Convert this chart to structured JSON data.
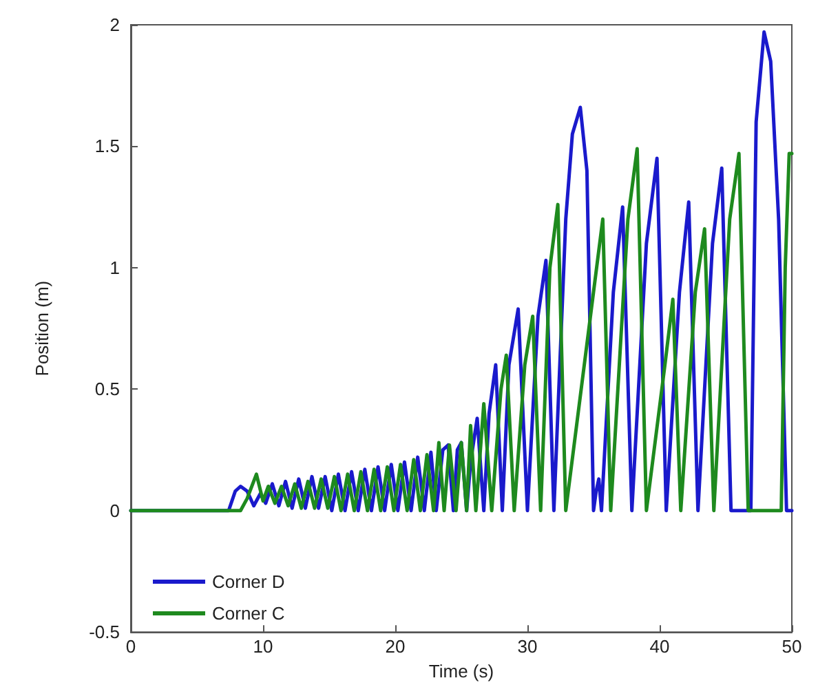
{
  "chart_data": {
    "type": "line",
    "xlabel": "Time (s)",
    "ylabel": "Position (m)",
    "xlim": [
      0,
      50
    ],
    "xticks": [
      0,
      10,
      20,
      30,
      40,
      50
    ],
    "ylim": [
      -0.5,
      2
    ],
    "yticks": [
      -0.5,
      0,
      0.5,
      1,
      1.5,
      2
    ],
    "grid": false,
    "legend": "bottom left",
    "marker": "none",
    "line_style": "solid",
    "series": [
      {
        "name": "Corner D",
        "color": "#1a1acc",
        "x": [
          0,
          7.4,
          7.9,
          8.3,
          8.8,
          9.3,
          9.8,
          10.2,
          10.7,
          11.2,
          11.7,
          12.2,
          12.7,
          13.2,
          13.7,
          14.2,
          14.7,
          15.2,
          15.7,
          16.2,
          16.7,
          17.2,
          17.7,
          18.2,
          18.7,
          19.2,
          19.7,
          20.2,
          20.7,
          21.2,
          21.7,
          22.2,
          22.7,
          23.1,
          23.6,
          24.0,
          24.4,
          24.7,
          25.0,
          25.4,
          25.7,
          26.2,
          26.7,
          27.1,
          27.6,
          28.1,
          28.6,
          29.3,
          30.0,
          30.8,
          31.4,
          32.0,
          32.9,
          33.4,
          34.0,
          34.5,
          35.0,
          35.2,
          35.4,
          35.6,
          36.5,
          37.2,
          37.9,
          39.0,
          39.8,
          40.5,
          41.5,
          42.2,
          42.9,
          44.0,
          44.7,
          45.4,
          46.9,
          47.3,
          47.9,
          48.4,
          49.0,
          49.6,
          50
        ],
        "values": [
          0,
          0,
          0.08,
          0.1,
          0.08,
          0.02,
          0.07,
          0.03,
          0.11,
          0.02,
          0.12,
          0.01,
          0.13,
          0.01,
          0.14,
          0.01,
          0.14,
          0,
          0.15,
          0,
          0.16,
          0,
          0.17,
          0,
          0.18,
          0,
          0.19,
          0,
          0.2,
          0,
          0.22,
          0,
          0.24,
          0,
          0.25,
          0.27,
          0,
          0.25,
          0.28,
          0,
          0.2,
          0.38,
          0,
          0.4,
          0.6,
          0,
          0.6,
          0.83,
          0,
          0.8,
          1.03,
          0,
          1.2,
          1.55,
          1.66,
          1.4,
          0,
          0.08,
          0.13,
          0,
          0.9,
          1.25,
          0,
          1.1,
          1.45,
          0,
          0.9,
          1.27,
          0,
          1.1,
          1.41,
          0,
          0,
          1.6,
          1.97,
          1.85,
          1.2,
          0,
          0
        ]
      },
      {
        "name": "Corner C",
        "color": "#1e8a1e",
        "x": [
          0,
          8.3,
          8.8,
          9.5,
          10.0,
          10.4,
          10.9,
          11.4,
          11.9,
          12.4,
          12.9,
          13.4,
          13.9,
          14.4,
          14.9,
          15.4,
          15.9,
          16.4,
          16.9,
          17.4,
          17.9,
          18.4,
          18.9,
          19.4,
          19.9,
          20.4,
          20.9,
          21.4,
          21.9,
          22.4,
          22.9,
          23.3,
          23.7,
          24.1,
          24.6,
          25.0,
          25.4,
          25.7,
          26.1,
          26.7,
          27.3,
          28.0,
          28.4,
          29.0,
          29.8,
          30.4,
          31.0,
          31.7,
          32.3,
          32.9,
          35.0,
          35.7,
          36.3,
          37.6,
          38.3,
          39.0,
          40.4,
          41.0,
          41.6,
          42.7,
          43.4,
          44.1,
          45.3,
          46.0,
          46.7,
          49.2,
          49.5,
          49.8,
          50
        ],
        "values": [
          0,
          0,
          0.05,
          0.15,
          0.04,
          0.1,
          0.03,
          0.1,
          0.02,
          0.11,
          0.01,
          0.12,
          0.01,
          0.13,
          0.01,
          0.14,
          0,
          0.15,
          0,
          0.16,
          0,
          0.17,
          0,
          0.18,
          0,
          0.19,
          0,
          0.21,
          0,
          0.23,
          0,
          0.28,
          0,
          0.27,
          0,
          0.28,
          0,
          0.35,
          0,
          0.44,
          0,
          0.5,
          0.64,
          0,
          0.6,
          0.8,
          0,
          1.0,
          1.26,
          0,
          0.9,
          1.2,
          0,
          1.2,
          1.49,
          0,
          0.6,
          0.87,
          0,
          0.9,
          1.16,
          0,
          1.2,
          1.47,
          0,
          0,
          1.0,
          1.47,
          1.47
        ]
      }
    ]
  }
}
